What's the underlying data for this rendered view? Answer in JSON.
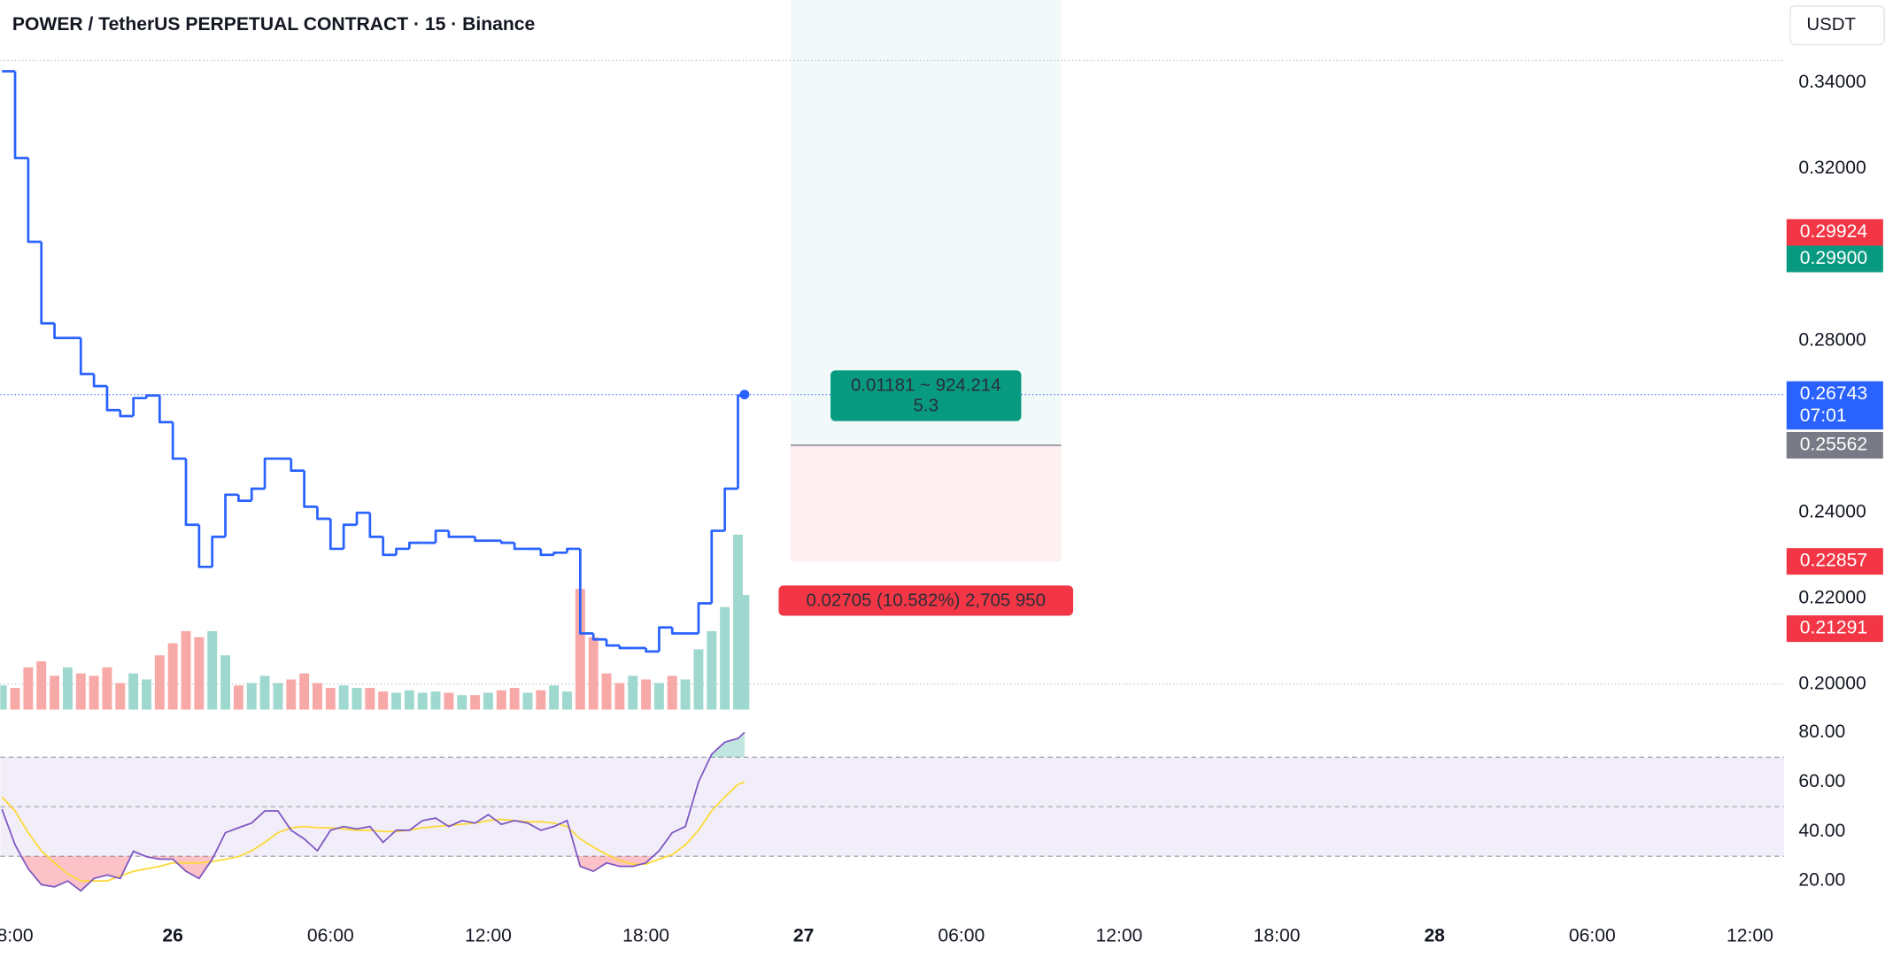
{
  "chart_data": [
    {
      "type": "line",
      "style": "step",
      "title": "POWER / TetherUS PERPETUAL CONTRACT · 15 · Binance",
      "currency": "USDT",
      "color": "#2962ff",
      "x": [
        -6.5,
        -6,
        -5.5,
        -5,
        -4.5,
        -4,
        -3.5,
        -3,
        -2.5,
        -2,
        -1.5,
        -1,
        -0.5,
        0,
        0.5,
        1,
        1.5,
        2,
        2.5,
        3,
        3.5,
        4,
        4.5,
        5,
        5.5,
        6,
        6.5,
        7,
        7.5,
        8,
        8.5,
        9,
        9.5,
        10,
        10.5,
        11,
        11.5,
        12,
        12.5,
        13,
        13.5,
        14,
        14.5,
        15,
        15.5,
        16,
        16.5,
        17,
        17.5,
        18,
        18.5,
        19,
        19.5,
        20,
        20.5,
        21,
        21.5,
        21.75
      ],
      "values": [
        0.3427,
        0.3225,
        0.303,
        0.284,
        0.2806,
        0.2806,
        0.2722,
        0.2694,
        0.2638,
        0.2624,
        0.2666,
        0.2672,
        0.261,
        0.2525,
        0.2371,
        0.2273,
        0.2343,
        0.2441,
        0.2427,
        0.2455,
        0.2525,
        0.2525,
        0.2497,
        0.2413,
        0.2385,
        0.2315,
        0.2371,
        0.2399,
        0.2343,
        0.2301,
        0.2315,
        0.2329,
        0.2329,
        0.2357,
        0.2343,
        0.2343,
        0.2334,
        0.2334,
        0.2329,
        0.2315,
        0.2315,
        0.2301,
        0.2306,
        0.2315,
        0.2118,
        0.2104,
        0.209,
        0.2084,
        0.2084,
        0.2076,
        0.2132,
        0.2118,
        0.2118,
        0.2188,
        0.2357,
        0.2455,
        0.2672,
        0.26743
      ],
      "volume": {
        "values": [
          20,
          18,
          35,
          40,
          28,
          35,
          30,
          28,
          35,
          22,
          30,
          25,
          45,
          55,
          65,
          60,
          65,
          45,
          20,
          22,
          28,
          22,
          25,
          30,
          22,
          18,
          20,
          18,
          18,
          15,
          14,
          16,
          14,
          15,
          14,
          12,
          12,
          14,
          16,
          18,
          14,
          16,
          20,
          15,
          100,
          60,
          30,
          22,
          28,
          25,
          22,
          28,
          25,
          50,
          65,
          85,
          145,
          95
        ],
        "vlim": [
          0,
          150
        ],
        "up_color": "#9fd8cf",
        "down_color": "#f7a9a7"
      },
      "xlim": [
        -6.565,
        61.3
      ],
      "xticks": [
        {
          "value": -6,
          "label": "8:00"
        },
        {
          "value": 0,
          "label": "26"
        },
        {
          "value": 6,
          "label": "06:00"
        },
        {
          "value": 12,
          "label": "12:00"
        },
        {
          "value": 18,
          "label": "18:00"
        },
        {
          "value": 24,
          "label": "27"
        },
        {
          "value": 30,
          "label": "06:00"
        },
        {
          "value": 36,
          "label": "12:00"
        },
        {
          "value": 42,
          "label": "18:00"
        },
        {
          "value": 48,
          "label": "28"
        },
        {
          "value": 54,
          "label": "06:00"
        },
        {
          "value": 60,
          "label": "12:00"
        }
      ],
      "ylim": [
        0.1935,
        0.3593
      ],
      "yticks": [
        {
          "value": 0.34,
          "label": "0.34000"
        },
        {
          "value": 0.32,
          "label": "0.32000"
        },
        {
          "value": 0.28,
          "label": "0.28000"
        },
        {
          "value": 0.24,
          "label": "0.24000"
        },
        {
          "value": 0.22,
          "label": "0.22000"
        },
        {
          "value": 0.2,
          "label": "0.20000"
        }
      ],
      "hlines": [
        0.3452,
        0.2
      ],
      "price_labels": [
        {
          "value": 0.29924,
          "label": "0.29924",
          "color": "#f23645"
        },
        {
          "value": 0.299,
          "label": "0.29900",
          "color": "#089981"
        },
        {
          "value": 0.26743,
          "label": "0.26743",
          "color": "#2962ff",
          "countdown": "07:01"
        },
        {
          "value": 0.25562,
          "label": "0.25562",
          "color": "#787b86"
        },
        {
          "value": 0.22857,
          "label": "0.22857",
          "color": "#f23645"
        },
        {
          "value": 0.21291,
          "label": "0.21291",
          "color": "#f23645"
        }
      ],
      "position": {
        "x": [
          23.5,
          33.8
        ],
        "entry": 0.25562,
        "stop": 0.22857,
        "target_label": [
          "0.01181 ~ 924.214",
          "5.3"
        ],
        "stop_label": "0.02705 (10.582%) 2,705 950"
      }
    },
    {
      "type": "line",
      "series": [
        {
          "color": "#7e57c2",
          "values": [
            49,
            34.6,
            24.9,
            18.5,
            17.6,
            20,
            16,
            21,
            22.4,
            21,
            32,
            29.8,
            28.8,
            28.8,
            23.9,
            21,
            28.8,
            39.5,
            41.5,
            43.4,
            48.3,
            48.3,
            40.5,
            37,
            32.2,
            40.5,
            42,
            41,
            42,
            35.6,
            40.5,
            40.5,
            44.4,
            45.4,
            42,
            44.4,
            43.4,
            46.8,
            42.9,
            44.4,
            43.4,
            40.5,
            42,
            44.4,
            25.9,
            23.9,
            27.3,
            25.9,
            25.9,
            27.3,
            32.2,
            39.5,
            42,
            60,
            71.2,
            76.1,
            77.6,
            80
          ]
        },
        {
          "color": "#fdd835",
          "values": [
            54,
            48.3,
            39.5,
            32.2,
            27.3,
            22.9,
            20,
            20,
            20,
            22,
            23.9,
            24.9,
            25.9,
            27.3,
            27.3,
            27.3,
            27.8,
            28.8,
            29.8,
            32.2,
            35.6,
            39.5,
            41.5,
            42,
            41.5,
            41.5,
            41,
            40.5,
            40.5,
            40,
            40,
            40.5,
            41.5,
            42,
            42.4,
            42.9,
            43.4,
            44.4,
            44.9,
            44.4,
            43.9,
            43.9,
            43.4,
            42,
            37,
            33.7,
            30.7,
            28.3,
            26.8,
            26.8,
            28.8,
            30.7,
            34.6,
            40.5,
            48.3,
            54,
            59,
            60
          ]
        }
      ],
      "ylim": [
        7.8,
        87.3
      ],
      "yticks": [
        {
          "value": 80,
          "label": "80.00"
        },
        {
          "value": 60,
          "label": "60.00"
        },
        {
          "value": 40,
          "label": "40.00"
        },
        {
          "value": 20,
          "label": "20.00"
        }
      ],
      "bands": [
        70,
        50,
        30
      ]
    }
  ]
}
